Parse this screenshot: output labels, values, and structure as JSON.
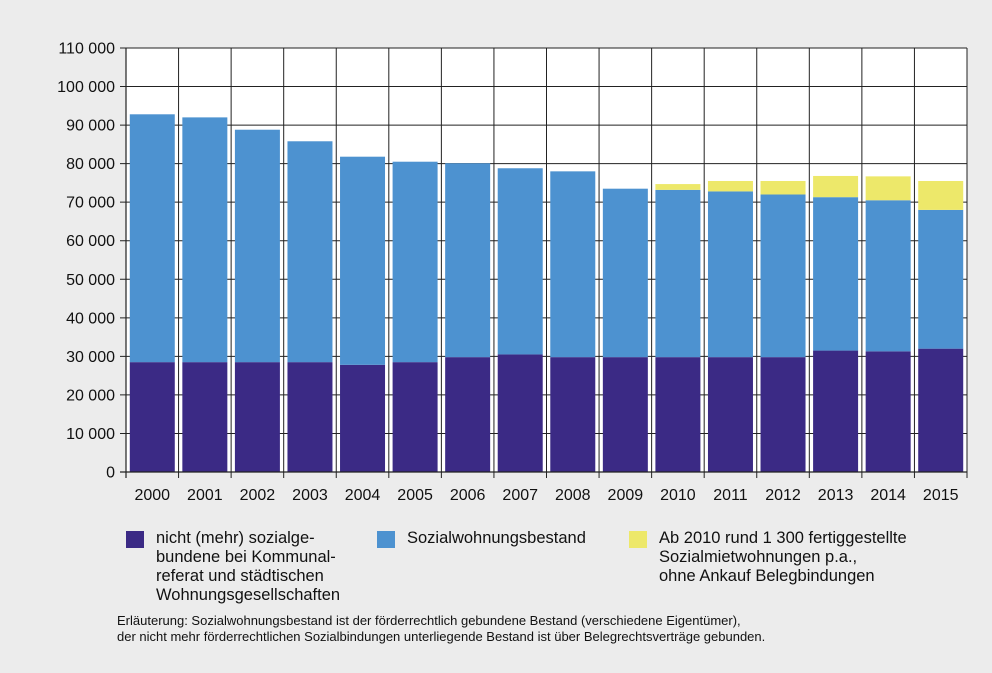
{
  "chart_data": {
    "type": "bar",
    "stacked": true,
    "categories": [
      "2000",
      "2001",
      "2002",
      "2003",
      "2004",
      "2005",
      "2006",
      "2007",
      "2008",
      "2009",
      "2010",
      "2011",
      "2012",
      "2013",
      "2014",
      "2015"
    ],
    "series": [
      {
        "name": "nicht (mehr) sozialge-\nbundene bei Kommunal-\nreferat und städtischen\nWohnungsgesellschaften",
        "color": "#3b2a85",
        "values": [
          28500,
          28500,
          28500,
          28500,
          27800,
          28500,
          29800,
          30500,
          29800,
          29800,
          29800,
          29800,
          29800,
          31500,
          31300,
          32000
        ]
      },
      {
        "name": "Sozialwohnungsbestand",
        "color": "#4d92d0",
        "values": [
          64300,
          63500,
          60300,
          57300,
          54000,
          52000,
          50300,
          48300,
          48200,
          43700,
          43400,
          43000,
          42200,
          39800,
          39200,
          36000
        ]
      },
      {
        "name": "Ab 2010 rund 1 300 fertiggestellte\nSozialmietwohnungen p.a.,\nohne Ankauf Belegbindungen",
        "color": "#ede86a",
        "values": [
          0,
          0,
          0,
          0,
          0,
          0,
          0,
          0,
          0,
          0,
          1500,
          2700,
          3500,
          5500,
          6200,
          7500
        ]
      }
    ],
    "yticks": [
      "0",
      "10 000",
      "20 000",
      "30 000",
      "40 000",
      "50 000",
      "60 000",
      "70 000",
      "80 000",
      "90 000",
      "100 000",
      "110 000"
    ],
    "ylim": [
      0,
      110000
    ],
    "grid": true
  },
  "note": {
    "line1": "Erläuterung: Sozialwohnungsbestand ist der förderrechtlich gebundene Bestand (verschiedene Eigentümer),",
    "line2": "der nicht mehr förderrechtlichen Sozialbindungen unterliegende Bestand ist über Belegrechtsverträge gebunden."
  }
}
